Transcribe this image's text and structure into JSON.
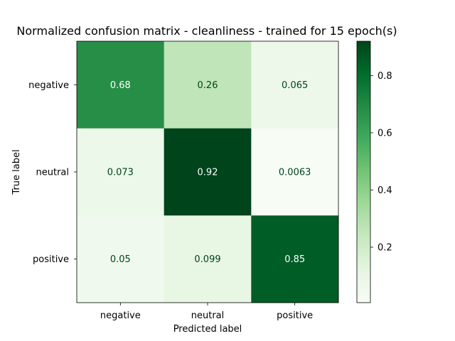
{
  "chart_data": {
    "type": "heatmap",
    "title": "Normalized confusion matrix - cleanliness - trained for 15 epoch(s)",
    "xlabel": "Predicted label",
    "ylabel": "True label",
    "x_categories": [
      "negative",
      "neutral",
      "positive"
    ],
    "y_categories": [
      "negative",
      "neutral",
      "positive"
    ],
    "values": [
      [
        0.68,
        0.26,
        0.065
      ],
      [
        0.073,
        0.92,
        0.0063
      ],
      [
        0.05,
        0.099,
        0.85
      ]
    ],
    "cell_labels": [
      [
        "0.68",
        "0.26",
        "0.065"
      ],
      [
        "0.073",
        "0.92",
        "0.0063"
      ],
      [
        "0.05",
        "0.099",
        "0.85"
      ]
    ],
    "colormap": "Greens",
    "colorbar": {
      "range": [
        0.0063,
        0.92
      ],
      "ticks": [
        0.2,
        0.4,
        0.6,
        0.8
      ],
      "tick_labels": [
        "0.2",
        "0.4",
        "0.6",
        "0.8"
      ]
    }
  }
}
